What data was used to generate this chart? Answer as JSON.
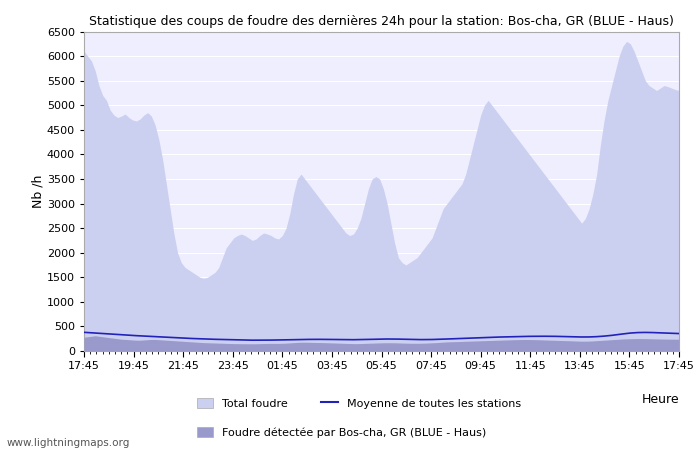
{
  "title": "Statistique des coups de foudre des dernières 24h pour la station: Bos-cha, GR (BLUE - Haus)",
  "xlabel": "Heure",
  "ylabel": "Nb /h",
  "ylim": [
    0,
    6500
  ],
  "yticks": [
    0,
    500,
    1000,
    1500,
    2000,
    2500,
    3000,
    3500,
    4000,
    4500,
    5000,
    5500,
    6000,
    6500
  ],
  "xtick_labels": [
    "17:45",
    "19:45",
    "21:45",
    "23:45",
    "01:45",
    "03:45",
    "05:45",
    "07:45",
    "09:45",
    "11:45",
    "13:45",
    "15:45",
    "17:45"
  ],
  "background_color": "#ffffff",
  "plot_bg_color": "#eeeeff",
  "grid_color": "#ffffff",
  "total_foudre_color": "#ccd0f0",
  "total_foudre_edge": "#ccd0f0",
  "local_foudre_color": "#9999cc",
  "local_foudre_edge": "#9999cc",
  "mean_line_color": "#2222bb",
  "watermark": "www.lightningmaps.org",
  "legend_total": "Total foudre",
  "legend_local": "Foudre détectée par Bos-cha, GR (BLUE - Haus)",
  "legend_mean": "Moyenne de toutes les stations",
  "total_foudre": [
    6100,
    6000,
    5900,
    5700,
    5400,
    5200,
    5100,
    4900,
    4800,
    4750,
    4780,
    4820,
    4750,
    4700,
    4680,
    4720,
    4800,
    4850,
    4780,
    4600,
    4300,
    3900,
    3400,
    2900,
    2400,
    2000,
    1800,
    1700,
    1650,
    1600,
    1550,
    1500,
    1480,
    1500,
    1550,
    1600,
    1700,
    1900,
    2100,
    2200,
    2300,
    2350,
    2380,
    2350,
    2300,
    2250,
    2280,
    2350,
    2400,
    2380,
    2350,
    2300,
    2280,
    2350,
    2500,
    2800,
    3200,
    3500,
    3600,
    3500,
    3400,
    3300,
    3200,
    3100,
    3000,
    2900,
    2800,
    2700,
    2600,
    2500,
    2400,
    2350,
    2380,
    2500,
    2700,
    3000,
    3300,
    3500,
    3550,
    3500,
    3300,
    3000,
    2600,
    2200,
    1900,
    1800,
    1750,
    1800,
    1850,
    1900,
    2000,
    2100,
    2200,
    2300,
    2500,
    2700,
    2900,
    3000,
    3100,
    3200,
    3300,
    3400,
    3600,
    3900,
    4200,
    4500,
    4800,
    5000,
    5100,
    5000,
    4900,
    4800,
    4700,
    4600,
    4500,
    4400,
    4300,
    4200,
    4100,
    4000,
    3900,
    3800,
    3700,
    3600,
    3500,
    3400,
    3300,
    3200,
    3100,
    3000,
    2900,
    2800,
    2700,
    2600,
    2700,
    2900,
    3200,
    3600,
    4200,
    4700,
    5100,
    5400,
    5700,
    6000,
    6200,
    6300,
    6250,
    6100,
    5900,
    5700,
    5500,
    5400,
    5350,
    5300,
    5350,
    5400,
    5380,
    5350,
    5320,
    5300
  ],
  "local_foudre": [
    280,
    290,
    300,
    310,
    300,
    290,
    280,
    270,
    260,
    250,
    240,
    235,
    230,
    225,
    220,
    220,
    225,
    230,
    235,
    235,
    230,
    225,
    220,
    215,
    210,
    205,
    200,
    195,
    190,
    185,
    180,
    175,
    170,
    168,
    165,
    163,
    160,
    158,
    155,
    153,
    150,
    150,
    148,
    148,
    147,
    147,
    148,
    150,
    152,
    154,
    155,
    155,
    155,
    157,
    160,
    165,
    170,
    175,
    178,
    178,
    177,
    175,
    173,
    172,
    170,
    168,
    165,
    163,
    160,
    158,
    155,
    153,
    150,
    150,
    152,
    155,
    158,
    160,
    163,
    165,
    167,
    168,
    168,
    167,
    165,
    162,
    160,
    158,
    157,
    157,
    158,
    160,
    163,
    167,
    170,
    175,
    180,
    185,
    188,
    190,
    192,
    195,
    198,
    200,
    203,
    205,
    208,
    210,
    213,
    215,
    218,
    220,
    223,
    225,
    228,
    230,
    232,
    233,
    234,
    233,
    232,
    230,
    228,
    225,
    222,
    220,
    218,
    215,
    212,
    210,
    208,
    205,
    202,
    200,
    200,
    202,
    205,
    210,
    215,
    220,
    225,
    230,
    235,
    240,
    245,
    248,
    250,
    252,
    253,
    253,
    252,
    250,
    248,
    246,
    244,
    243,
    242,
    241,
    240,
    240
  ],
  "mean_line": [
    380,
    375,
    370,
    365,
    360,
    355,
    350,
    345,
    340,
    335,
    330,
    325,
    320,
    316,
    312,
    308,
    304,
    300,
    296,
    292,
    288,
    284,
    280,
    276,
    272,
    268,
    264,
    260,
    257,
    254,
    251,
    248,
    245,
    242,
    240,
    238,
    236,
    234,
    232,
    230,
    228,
    226,
    224,
    222,
    221,
    220,
    220,
    220,
    220,
    221,
    222,
    223,
    224,
    225,
    226,
    228,
    230,
    232,
    234,
    235,
    236,
    237,
    237,
    237,
    237,
    236,
    235,
    234,
    233,
    232,
    231,
    230,
    230,
    231,
    232,
    234,
    236,
    238,
    240,
    242,
    243,
    244,
    244,
    243,
    242,
    240,
    238,
    236,
    234,
    233,
    232,
    232,
    233,
    234,
    236,
    238,
    241,
    244,
    247,
    250,
    253,
    256,
    259,
    262,
    265,
    268,
    271,
    274,
    277,
    280,
    282,
    284,
    286,
    288,
    290,
    292,
    294,
    296,
    297,
    298,
    299,
    300,
    300,
    300,
    300,
    299,
    298,
    296,
    294,
    292,
    290,
    288,
    286,
    285,
    285,
    286,
    288,
    292,
    297,
    303,
    310,
    318,
    327,
    337,
    347,
    357,
    365,
    371,
    375,
    377,
    378,
    377,
    375,
    372,
    369,
    366,
    363,
    360,
    357,
    355
  ]
}
